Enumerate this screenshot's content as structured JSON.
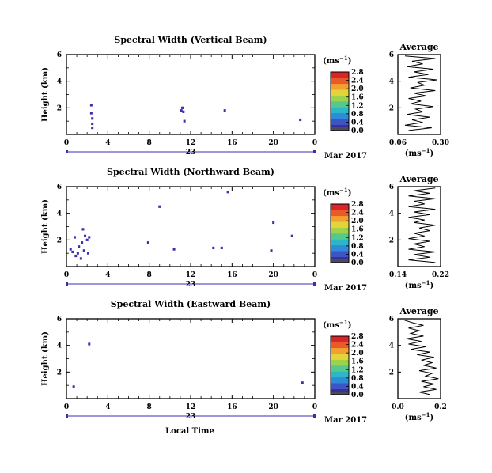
{
  "colors": {
    "background": "#ffffff",
    "axis": "#000000",
    "echo": "#3a2fb0",
    "colorbar": [
      "#3a2f93",
      "#3b54c8",
      "#2f8bd8",
      "#2cb7c8",
      "#55c98c",
      "#9ed24a",
      "#e3d43a",
      "#f2a030",
      "#ea5a26",
      "#d8242a"
    ]
  },
  "x_axis_label": "Local Time",
  "date_label": "Mar 2017",
  "average_title": "Average",
  "unit_label": "(ms",
  "unit_sup": "−1",
  "unit_close": ")",
  "chart_data": [
    {
      "type": "heatmap",
      "title": "Spectral Width (Vertical Beam)",
      "ylabel": "Height (km)",
      "xlim": [
        0,
        24
      ],
      "x_ticks": [
        "0",
        "4",
        "8",
        "12",
        "16",
        "20",
        "0"
      ],
      "ylim": [
        0,
        6
      ],
      "y_ticks": [
        "2",
        "4",
        "6"
      ],
      "day_label": "23",
      "colorbar_ticks": [
        "0.0",
        "0.4",
        "0.8",
        "1.2",
        "1.6",
        "2.0",
        "2.4",
        "2.8"
      ],
      "points": [
        {
          "t": 2.4,
          "h": 2.2
        },
        {
          "t": 2.4,
          "h": 1.6
        },
        {
          "t": 2.5,
          "h": 1.2
        },
        {
          "t": 2.5,
          "h": 0.8
        },
        {
          "t": 2.5,
          "h": 0.5
        },
        {
          "t": 11.1,
          "h": 1.8
        },
        {
          "t": 11.2,
          "h": 2.0
        },
        {
          "t": 11.3,
          "h": 1.7
        },
        {
          "t": 11.4,
          "h": 1.0
        },
        {
          "t": 15.3,
          "h": 1.8
        },
        {
          "t": 22.6,
          "h": 1.1
        }
      ],
      "average": {
        "xlabel": "(ms−1)",
        "xlim": [
          0.06,
          0.3
        ],
        "x_ticks": [
          "0.06",
          "0.30"
        ],
        "ylim": [
          0,
          6
        ],
        "y_ticks": [
          "2",
          "4",
          "6"
        ],
        "profile": [
          {
            "h": 0.3,
            "v": 0.12
          },
          {
            "h": 0.5,
            "v": 0.25
          },
          {
            "h": 0.7,
            "v": 0.1
          },
          {
            "h": 0.9,
            "v": 0.2
          },
          {
            "h": 1.1,
            "v": 0.14
          },
          {
            "h": 1.3,
            "v": 0.24
          },
          {
            "h": 1.5,
            "v": 0.11
          },
          {
            "h": 1.7,
            "v": 0.2
          },
          {
            "h": 1.9,
            "v": 0.16
          },
          {
            "h": 2.1,
            "v": 0.26
          },
          {
            "h": 2.3,
            "v": 0.13
          },
          {
            "h": 2.5,
            "v": 0.19
          },
          {
            "h": 2.7,
            "v": 0.12
          },
          {
            "h": 2.9,
            "v": 0.22
          },
          {
            "h": 3.1,
            "v": 0.15
          },
          {
            "h": 3.3,
            "v": 0.27
          },
          {
            "h": 3.5,
            "v": 0.13
          },
          {
            "h": 3.7,
            "v": 0.21
          },
          {
            "h": 3.9,
            "v": 0.17
          },
          {
            "h": 4.1,
            "v": 0.28
          },
          {
            "h": 4.3,
            "v": 0.12
          },
          {
            "h": 4.5,
            "v": 0.23
          },
          {
            "h": 4.7,
            "v": 0.15
          },
          {
            "h": 4.9,
            "v": 0.26
          },
          {
            "h": 5.1,
            "v": 0.11
          },
          {
            "h": 5.3,
            "v": 0.2
          },
          {
            "h": 5.5,
            "v": 0.14
          },
          {
            "h": 5.7,
            "v": 0.27
          },
          {
            "h": 5.9,
            "v": 0.1
          }
        ]
      }
    },
    {
      "type": "heatmap",
      "title": "Spectral Width (Northward Beam)",
      "ylabel": "Height (km)",
      "xlim": [
        0,
        24
      ],
      "x_ticks": [
        "0",
        "4",
        "8",
        "12",
        "16",
        "20",
        "0"
      ],
      "ylim": [
        0,
        6
      ],
      "y_ticks": [
        "2",
        "4",
        "6"
      ],
      "day_label": "23",
      "colorbar_ticks": [
        "0.0",
        "0.4",
        "0.8",
        "1.2",
        "1.6",
        "2.0",
        "2.4",
        "2.8"
      ],
      "points": [
        {
          "t": 0.4,
          "h": 1.3
        },
        {
          "t": 0.6,
          "h": 1.1
        },
        {
          "t": 0.8,
          "h": 2.2
        },
        {
          "t": 0.9,
          "h": 0.8
        },
        {
          "t": 1.1,
          "h": 1.0
        },
        {
          "t": 1.2,
          "h": 1.5
        },
        {
          "t": 1.4,
          "h": 0.6
        },
        {
          "t": 1.5,
          "h": 1.8
        },
        {
          "t": 1.6,
          "h": 2.8
        },
        {
          "t": 1.7,
          "h": 1.2
        },
        {
          "t": 1.8,
          "h": 2.3
        },
        {
          "t": 2.0,
          "h": 2.0
        },
        {
          "t": 2.1,
          "h": 1.0
        },
        {
          "t": 2.2,
          "h": 2.2
        },
        {
          "t": 7.9,
          "h": 1.8
        },
        {
          "t": 9.0,
          "h": 4.5
        },
        {
          "t": 10.4,
          "h": 1.3
        },
        {
          "t": 14.2,
          "h": 1.4
        },
        {
          "t": 15.0,
          "h": 1.4
        },
        {
          "t": 15.6,
          "h": 5.6
        },
        {
          "t": 19.8,
          "h": 1.2
        },
        {
          "t": 20.0,
          "h": 3.3
        },
        {
          "t": 21.8,
          "h": 2.3
        }
      ],
      "average": {
        "xlabel": "(ms−1)",
        "xlim": [
          0.14,
          0.22
        ],
        "x_ticks": [
          "0.14",
          "0.22"
        ],
        "ylim": [
          0,
          6
        ],
        "y_ticks": [
          "2",
          "4",
          "6"
        ],
        "profile": [
          {
            "h": 0.3,
            "v": 0.21
          },
          {
            "h": 0.5,
            "v": 0.16
          },
          {
            "h": 0.7,
            "v": 0.2
          },
          {
            "h": 0.9,
            "v": 0.17
          },
          {
            "h": 1.1,
            "v": 0.21
          },
          {
            "h": 1.3,
            "v": 0.16
          },
          {
            "h": 1.5,
            "v": 0.19
          },
          {
            "h": 1.7,
            "v": 0.17
          },
          {
            "h": 1.9,
            "v": 0.2
          },
          {
            "h": 2.1,
            "v": 0.16
          },
          {
            "h": 2.3,
            "v": 0.19
          },
          {
            "h": 2.5,
            "v": 0.17
          },
          {
            "h": 2.7,
            "v": 0.2
          },
          {
            "h": 2.9,
            "v": 0.18
          },
          {
            "h": 3.1,
            "v": 0.21
          },
          {
            "h": 3.3,
            "v": 0.17
          },
          {
            "h": 3.5,
            "v": 0.19
          },
          {
            "h": 3.7,
            "v": 0.16
          },
          {
            "h": 3.9,
            "v": 0.2
          },
          {
            "h": 4.1,
            "v": 0.17
          },
          {
            "h": 4.3,
            "v": 0.21
          },
          {
            "h": 4.5,
            "v": 0.16
          },
          {
            "h": 4.7,
            "v": 0.19
          },
          {
            "h": 4.9,
            "v": 0.17
          },
          {
            "h": 5.1,
            "v": 0.21
          },
          {
            "h": 5.3,
            "v": 0.16
          },
          {
            "h": 5.5,
            "v": 0.2
          },
          {
            "h": 5.7,
            "v": 0.17
          },
          {
            "h": 5.9,
            "v": 0.21
          }
        ]
      }
    },
    {
      "type": "heatmap",
      "title": "Spectral Width (Eastward Beam)",
      "ylabel": "Height (km)",
      "xlim": [
        0,
        24
      ],
      "x_ticks": [
        "0",
        "4",
        "8",
        "12",
        "16",
        "20",
        "0"
      ],
      "ylim": [
        0,
        6
      ],
      "y_ticks": [
        "2",
        "4",
        "6"
      ],
      "day_label": "23",
      "colorbar_ticks": [
        "0.0",
        "0.4",
        "0.8",
        "1.2",
        "1.6",
        "2.0",
        "2.4",
        "2.8"
      ],
      "points": [
        {
          "t": 0.7,
          "h": 0.9
        },
        {
          "t": 2.2,
          "h": 4.1
        },
        {
          "t": 22.8,
          "h": 1.2
        }
      ],
      "average": {
        "xlabel": "(ms−1)",
        "xlim": [
          0.0,
          0.2
        ],
        "x_ticks": [
          "0.0",
          "0.2"
        ],
        "ylim": [
          0,
          6
        ],
        "y_ticks": [
          "2",
          "4",
          "6"
        ],
        "profile": [
          {
            "h": 0.3,
            "v": 0.15
          },
          {
            "h": 0.5,
            "v": 0.1
          },
          {
            "h": 0.7,
            "v": 0.18
          },
          {
            "h": 0.9,
            "v": 0.12
          },
          {
            "h": 1.1,
            "v": 0.17
          },
          {
            "h": 1.3,
            "v": 0.11
          },
          {
            "h": 1.5,
            "v": 0.19
          },
          {
            "h": 1.7,
            "v": 0.13
          },
          {
            "h": 1.9,
            "v": 0.16
          },
          {
            "h": 2.1,
            "v": 0.1
          },
          {
            "h": 2.3,
            "v": 0.18
          },
          {
            "h": 2.5,
            "v": 0.12
          },
          {
            "h": 2.7,
            "v": 0.16
          },
          {
            "h": 2.9,
            "v": 0.11
          },
          {
            "h": 3.1,
            "v": 0.17
          },
          {
            "h": 3.3,
            "v": 0.09
          },
          {
            "h": 3.5,
            "v": 0.15
          },
          {
            "h": 3.7,
            "v": 0.06
          },
          {
            "h": 3.9,
            "v": 0.13
          },
          {
            "h": 4.1,
            "v": 0.05
          },
          {
            "h": 4.3,
            "v": 0.11
          },
          {
            "h": 4.5,
            "v": 0.04
          },
          {
            "h": 4.7,
            "v": 0.12
          },
          {
            "h": 4.9,
            "v": 0.06
          },
          {
            "h": 5.1,
            "v": 0.1
          },
          {
            "h": 5.3,
            "v": 0.05
          },
          {
            "h": 5.5,
            "v": 0.12
          },
          {
            "h": 5.7,
            "v": 0.07
          },
          {
            "h": 5.9,
            "v": 0.03
          }
        ]
      }
    }
  ]
}
